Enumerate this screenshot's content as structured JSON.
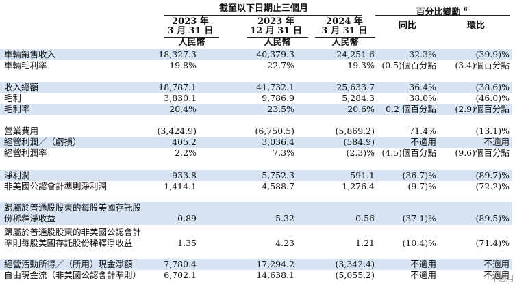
{
  "header": {
    "period_title": "截至以下日期止三個月",
    "pct_title": "百分比變動",
    "pct_note": "6",
    "col1_year": "2023 年",
    "col1_date": "3 月 31 日",
    "col2_year": "2023 年",
    "col2_date": "12 月 31 日",
    "col3_year": "2024 年",
    "col3_date": "3 月 31 日",
    "yoy": "同比",
    "qoq": "環比",
    "currency": "人民幣"
  },
  "rows": [
    {
      "label": "車輛銷售收入",
      "v1": "18,327.3",
      "v2": "40,379.3",
      "v3": "24,251.6",
      "v4": "32.3%",
      "v5": "(39.9)%",
      "shade": true
    },
    {
      "label": "車輛毛利率",
      "v1": "19.8%",
      "v2": "22.7%",
      "v3": "19.3%",
      "v4": "(0.5)個百分點",
      "v5": "(3.4)個百分點",
      "shade": false
    },
    {
      "label": "收入總額",
      "v1": "18,787.1",
      "v2": "41,732.1",
      "v3": "25,633.7",
      "v4": "36.4%",
      "v5": "(38.6)%",
      "shade": true
    },
    {
      "label": "毛利",
      "v1": "3,830.1",
      "v2": "9,786.9",
      "v3": "5,284.3",
      "v4": "38.0%",
      "v5": "(46.0)%",
      "shade": false
    },
    {
      "label": "毛利率",
      "v1": "20.4%",
      "v2": "23.5%",
      "v3": "20.6%",
      "v4": "0.2 個百分點",
      "v5": "(2.9)個百分點",
      "shade": true
    },
    {
      "label": "營業費用",
      "v1": "(3,424.9)",
      "v2": "(6,750.5)",
      "v3": "(5,869.2)",
      "v4": "71.4%",
      "v5": "(13.1)%",
      "shade": false
    },
    {
      "label": "經營利潤／（虧損）",
      "v1": "405.2",
      "v2": "3,036.4",
      "v3": "(584.9)",
      "v4": "不適用",
      "v5": "不適用",
      "shade": true
    },
    {
      "label": "經營利潤率",
      "v1": "2.2%",
      "v2": "7.3%",
      "v3": "(2.3)%",
      "v4": "(4.5)個百分點",
      "v5": "(9.6)個百分點",
      "shade": false
    },
    {
      "label": "淨利潤",
      "v1": "933.8",
      "v2": "5,752.3",
      "v3": "591.1",
      "v4": "(36.7)%",
      "v5": "(89.7)%",
      "shade": true
    },
    {
      "label": "非美國公認會計準則淨利潤",
      "v1": "1,414.1",
      "v2": "4,588.7",
      "v3": "1,276.4",
      "v4": "(9.7)%",
      "v5": "(72.2)%",
      "shade": false
    },
    {
      "label": "歸屬於普通股股東的每股美國存託股份稀釋淨收益",
      "label_l1": "歸屬於普通股股東的每股美國存託股",
      "label_l2": "份稀釋淨收益",
      "v1": "0.89",
      "v2": "5.32",
      "v3": "0.56",
      "v4": "(37.1)%",
      "v5": "(89.5)%",
      "shade": true
    },
    {
      "label": "歸屬於普通股股東的非美國公認會計準則每股美國存託股份稀釋淨收益",
      "label_l1": "歸屬於普通股股東的非美國公認會計",
      "label_l2": "準則每股美國存託股份稀釋淨收益",
      "v1": "1.35",
      "v2": "4.23",
      "v3": "1.21",
      "v4": "(10.4)%",
      "v5": "(71.4)%",
      "shade": false
    },
    {
      "label": "經營活動所得／（所用）現金淨額",
      "v1": "7,780.4",
      "v2": "17,294.2",
      "v3": "(3,342.4)",
      "v4": "不適用",
      "v5": "不適用",
      "shade": true
    },
    {
      "label": "自由現金流（非美國公認會計準則）",
      "v1": "6,702.1",
      "v2": "14,638.1",
      "v3": "(5,055.2)",
      "v4": "不適用",
      "v5": "不適用",
      "shade": false
    }
  ],
  "watermark": "不適用"
}
